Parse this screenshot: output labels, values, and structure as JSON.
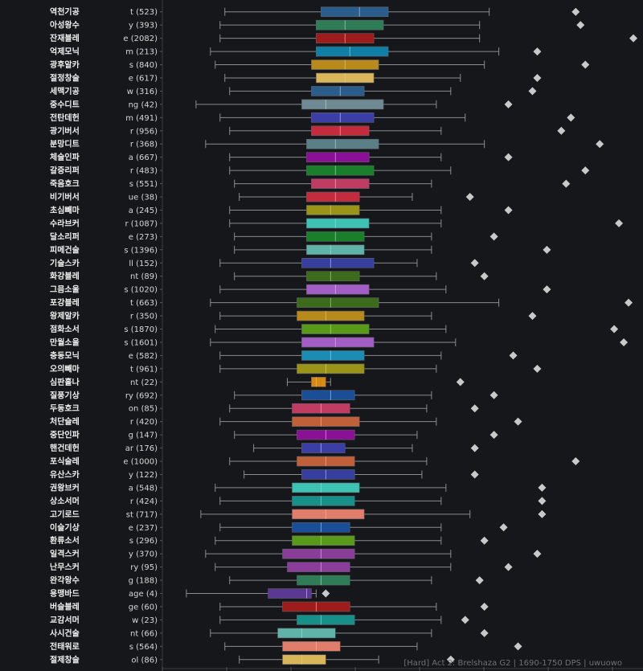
{
  "footer": "[Hard] Act 2: Brelshaza G2 | 1690-1750 DPS | uwuowo",
  "chart_data": {
    "type": "box",
    "orientation": "horizontal",
    "grid": false,
    "rows": [
      {
        "name": "역천기공",
        "sub": "t (523)",
        "color": "#2b5d8c",
        "whisker": [
          0.13,
          0.68
        ],
        "q": [
          0.33,
          0.47,
          0.41
        ],
        "outlier": 0.86
      },
      {
        "name": "아성왕수",
        "sub": "y (393)",
        "color": "#2f7d56",
        "whisker": [
          0.12,
          0.66
        ],
        "q": [
          0.32,
          0.46,
          0.38
        ],
        "outlier": 0.87
      },
      {
        "name": "잔재블레",
        "sub": "e (2082)",
        "color": "#9e1c1c",
        "whisker": [
          0.12,
          0.66
        ],
        "q": [
          0.32,
          0.44,
          0.38
        ],
        "outlier": 0.98
      },
      {
        "name": "억제모닉",
        "sub": "m (213)",
        "color": "#0f7fa6",
        "whisker": [
          0.1,
          0.7
        ],
        "q": [
          0.32,
          0.47,
          0.39
        ],
        "outlier": 0.78
      },
      {
        "name": "광후알카",
        "sub": "s (840)",
        "color": "#b78a1b",
        "whisker": [
          0.11,
          0.67
        ],
        "q": [
          0.31,
          0.45,
          0.38
        ],
        "outlier": 0.88
      },
      {
        "name": "절정창술",
        "sub": "e (617)",
        "color": "#d8b659",
        "whisker": [
          0.13,
          0.62
        ],
        "q": [
          0.32,
          0.44,
          0.38
        ],
        "outlier": 0.78
      },
      {
        "name": "세맥기공",
        "sub": "w (316)",
        "color": "#2b5d8c",
        "whisker": [
          0.14,
          0.6
        ],
        "q": [
          0.31,
          0.42,
          0.37
        ],
        "outlier": 0.77
      },
      {
        "name": "중수디트",
        "sub": "ng (42)",
        "color": "#708a93",
        "whisker": [
          0.07,
          0.57
        ],
        "q": [
          0.29,
          0.46,
          0.34
        ],
        "outlier": 0.72
      },
      {
        "name": "전탄데헌",
        "sub": "m (491)",
        "color": "#3b3fa5",
        "whisker": [
          0.12,
          0.63
        ],
        "q": [
          0.31,
          0.44,
          0.37
        ],
        "outlier": 0.85
      },
      {
        "name": "광기버서",
        "sub": "r (956)",
        "color": "#c42b3d",
        "whisker": [
          0.14,
          0.58
        ],
        "q": [
          0.31,
          0.43,
          0.37
        ],
        "outlier": 0.83
      },
      {
        "name": "분망디트",
        "sub": "r (368)",
        "color": "#5b7f86",
        "whisker": [
          0.09,
          0.67
        ],
        "q": [
          0.3,
          0.45,
          0.36
        ],
        "outlier": 0.91
      },
      {
        "name": "체술인파",
        "sub": "a (667)",
        "color": "#8a1196",
        "whisker": [
          0.14,
          0.58
        ],
        "q": [
          0.3,
          0.43,
          0.36
        ],
        "outlier": 0.72
      },
      {
        "name": "갈증리퍼",
        "sub": "r (483)",
        "color": "#1a7f2b",
        "whisker": [
          0.14,
          0.6
        ],
        "q": [
          0.3,
          0.44,
          0.36
        ],
        "outlier": 0.88
      },
      {
        "name": "죽음호크",
        "sub": "s (551)",
        "color": "#c03c63",
        "whisker": [
          0.15,
          0.56
        ],
        "q": [
          0.31,
          0.43,
          0.36
        ],
        "outlier": 0.84
      },
      {
        "name": "비기버서",
        "sub": "ue (38)",
        "color": "#c42b3d",
        "whisker": [
          0.16,
          0.52
        ],
        "q": [
          0.3,
          0.41,
          0.36
        ],
        "outlier": 0.64
      },
      {
        "name": "초심빼마",
        "sub": "a (245)",
        "color": "#9a9418",
        "whisker": [
          0.14,
          0.58
        ],
        "q": [
          0.3,
          0.41,
          0.35
        ],
        "outlier": 0.72
      },
      {
        "name": "수라브커",
        "sub": "r (1087)",
        "color": "#3dc2b3",
        "whisker": [
          0.14,
          0.58
        ],
        "q": [
          0.3,
          0.43,
          0.36
        ],
        "outlier": 0.95
      },
      {
        "name": "달소리퍼",
        "sub": "e (273)",
        "color": "#1a7f2b",
        "whisker": [
          0.15,
          0.56
        ],
        "q": [
          0.3,
          0.42,
          0.36
        ],
        "outlier": 0.69
      },
      {
        "name": "피메건술",
        "sub": "s (1396)",
        "color": "#5fb3a9",
        "whisker": [
          0.15,
          0.56
        ],
        "q": [
          0.3,
          0.42,
          0.35
        ],
        "outlier": 0.8
      },
      {
        "name": "기술스카",
        "sub": "ll (152)",
        "color": "#363f9e",
        "whisker": [
          0.12,
          0.53
        ],
        "q": [
          0.29,
          0.44,
          0.35
        ],
        "outlier": 0.65
      },
      {
        "name": "화강블레",
        "sub": "nt (89)",
        "color": "#3c6b1b",
        "whisker": [
          0.15,
          0.57
        ],
        "q": [
          0.3,
          0.41,
          0.35
        ],
        "outlier": 0.67
      },
      {
        "name": "그믐소울",
        "sub": "s (1020)",
        "color": "#a25ec4",
        "whisker": [
          0.12,
          0.59
        ],
        "q": [
          0.3,
          0.43,
          0.36
        ],
        "outlier": 0.8
      },
      {
        "name": "포강블레",
        "sub": "t (663)",
        "color": "#3c6b1b",
        "whisker": [
          0.1,
          0.7
        ],
        "q": [
          0.28,
          0.45,
          0.35
        ],
        "outlier": 0.97
      },
      {
        "name": "왕제알카",
        "sub": "r (350)",
        "color": "#b78a1b",
        "whisker": [
          0.12,
          0.56
        ],
        "q": [
          0.28,
          0.42,
          0.34
        ],
        "outlier": 0.77
      },
      {
        "name": "점화소서",
        "sub": "s (1870)",
        "color": "#5a9a1b",
        "whisker": [
          0.11,
          0.59
        ],
        "q": [
          0.29,
          0.43,
          0.35
        ],
        "outlier": 0.94
      },
      {
        "name": "만월소울",
        "sub": "s (1601)",
        "color": "#a25ec4",
        "whisker": [
          0.1,
          0.61
        ],
        "q": [
          0.29,
          0.44,
          0.36
        ],
        "outlier": 0.96
      },
      {
        "name": "충동모닉",
        "sub": "e (582)",
        "color": "#1b8cb4",
        "whisker": [
          0.12,
          0.58
        ],
        "q": [
          0.29,
          0.42,
          0.35
        ],
        "outlier": 0.73
      },
      {
        "name": "오의빼마",
        "sub": "t (961)",
        "color": "#9a9418",
        "whisker": [
          0.12,
          0.57
        ],
        "q": [
          0.28,
          0.42,
          0.34
        ],
        "outlier": 0.78
      },
      {
        "name": "심판홀나",
        "sub": "nt (22)",
        "color": "#d58a13",
        "whisker": [
          0.26,
          0.35
        ],
        "q": [
          0.31,
          0.34,
          0.32
        ],
        "outlier": 0.62
      },
      {
        "name": "질풍기상",
        "sub": "ry (692)",
        "color": "#1a4e96",
        "whisker": [
          0.15,
          0.56
        ],
        "q": [
          0.29,
          0.4,
          0.35
        ],
        "outlier": 0.69
      },
      {
        "name": "두동호크",
        "sub": "on (85)",
        "color": "#c03c63",
        "whisker": [
          0.14,
          0.55
        ],
        "q": [
          0.27,
          0.39,
          0.33
        ],
        "outlier": 0.65
      },
      {
        "name": "처단슬레",
        "sub": "r (420)",
        "color": "#c0603a",
        "whisker": [
          0.12,
          0.57
        ],
        "q": [
          0.27,
          0.41,
          0.33
        ],
        "outlier": 0.74
      },
      {
        "name": "중단인파",
        "sub": "g (147)",
        "color": "#8a1196",
        "whisker": [
          0.15,
          0.53
        ],
        "q": [
          0.28,
          0.4,
          0.34
        ],
        "outlier": 0.69
      },
      {
        "name": "핸건데헌",
        "sub": "ar (176)",
        "color": "#3b3fa5",
        "whisker": [
          0.19,
          0.52
        ],
        "q": [
          0.29,
          0.38,
          0.33
        ],
        "outlier": 0.65
      },
      {
        "name": "포식슬레",
        "sub": "e (1000)",
        "color": "#c0603a",
        "whisker": [
          0.14,
          0.55
        ],
        "q": [
          0.28,
          0.4,
          0.34
        ],
        "outlier": 0.86
      },
      {
        "name": "유산스카",
        "sub": "y (122)",
        "color": "#363f9e",
        "whisker": [
          0.17,
          0.54
        ],
        "q": [
          0.29,
          0.4,
          0.34
        ],
        "outlier": 0.65
      },
      {
        "name": "권왕브커",
        "sub": "a (548)",
        "color": "#3dc2b3",
        "whisker": [
          0.11,
          0.59
        ],
        "q": [
          0.27,
          0.41,
          0.33
        ],
        "outlier": 0.79
      },
      {
        "name": "상소서머",
        "sub": "r (424)",
        "color": "#17908a",
        "whisker": [
          0.12,
          0.58
        ],
        "q": [
          0.27,
          0.4,
          0.33
        ],
        "outlier": 0.79
      },
      {
        "name": "고기로드",
        "sub": "st (717)",
        "color": "#e07e6b",
        "whisker": [
          0.08,
          0.64
        ],
        "q": [
          0.27,
          0.42,
          0.34
        ],
        "outlier": 0.79
      },
      {
        "name": "이슬기상",
        "sub": "e (237)",
        "color": "#1a4e96",
        "whisker": [
          0.12,
          0.58
        ],
        "q": [
          0.27,
          0.39,
          0.33
        ],
        "outlier": 0.71
      },
      {
        "name": "환류소서",
        "sub": "s (296)",
        "color": "#5a9a1b",
        "whisker": [
          0.11,
          0.58
        ],
        "q": [
          0.27,
          0.4,
          0.33
        ],
        "outlier": 0.67
      },
      {
        "name": "일격스커",
        "sub": "y (370)",
        "color": "#8a3e99",
        "whisker": [
          0.09,
          0.6
        ],
        "q": [
          0.25,
          0.4,
          0.33
        ],
        "outlier": 0.78
      },
      {
        "name": "난무스커",
        "sub": "ry (95)",
        "color": "#8a3e99",
        "whisker": [
          0.11,
          0.6
        ],
        "q": [
          0.26,
          0.39,
          0.33
        ],
        "outlier": 0.72
      },
      {
        "name": "완각왕수",
        "sub": "g (188)",
        "color": "#2f7d56",
        "whisker": [
          0.14,
          0.56
        ],
        "q": [
          0.28,
          0.39,
          0.33
        ],
        "outlier": 0.66
      },
      {
        "name": "용맹바드",
        "sub": "age (4)",
        "color": "#5b3992",
        "whisker": [
          0.05,
          0.32
        ],
        "q": [
          0.22,
          0.31,
          0.3
        ],
        "outlier": 0.34
      },
      {
        "name": "버슬블레",
        "sub": "ge (60)",
        "color": "#9e1c1c",
        "whisker": [
          0.12,
          0.57
        ],
        "q": [
          0.25,
          0.39,
          0.32
        ],
        "outlier": 0.67
      },
      {
        "name": "교감서머",
        "sub": "w (23)",
        "color": "#17908a",
        "whisker": [
          0.12,
          0.58
        ],
        "q": [
          0.28,
          0.4,
          0.33
        ],
        "outlier": 0.63
      },
      {
        "name": "사시건술",
        "sub": "nt (66)",
        "color": "#5fb3a9",
        "whisker": [
          0.1,
          0.56
        ],
        "q": [
          0.24,
          0.36,
          0.29
        ],
        "outlier": 0.67
      },
      {
        "name": "전태워로",
        "sub": "s (564)",
        "color": "#e07e6b",
        "whisker": [
          0.13,
          0.53
        ],
        "q": [
          0.25,
          0.37,
          0.32
        ],
        "outlier": 0.74
      },
      {
        "name": "절제창술",
        "sub": "ol (86)",
        "color": "#d8b659",
        "whisker": [
          0.16,
          0.45
        ],
        "q": [
          0.25,
          0.34,
          0.29
        ],
        "outlier": 0.6
      }
    ]
  }
}
